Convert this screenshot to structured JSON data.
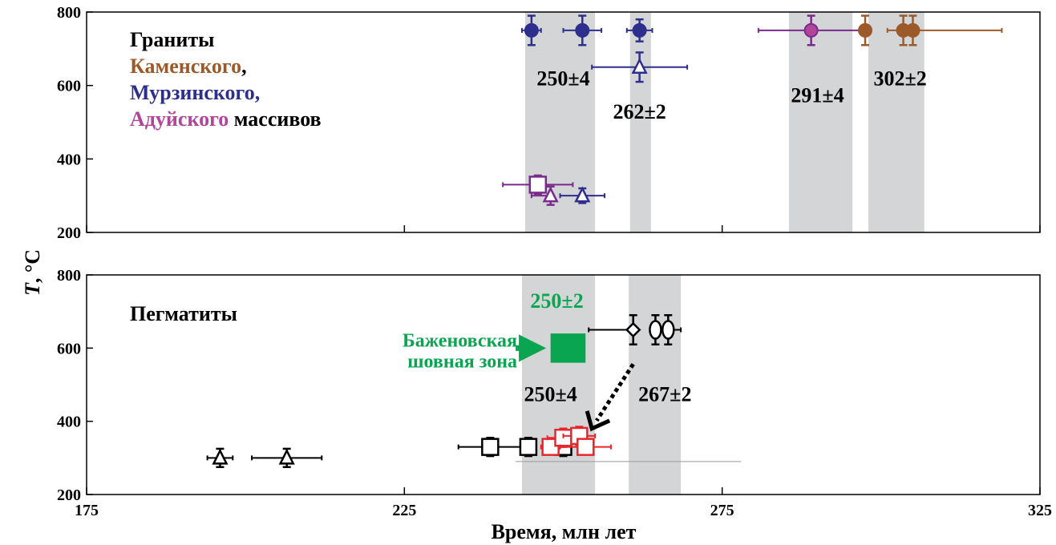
{
  "chart_data": {
    "type": "scatter",
    "xlabel": "Время, млн лет",
    "ylabel_italic": "T",
    "ylabel_unit": ", °C",
    "xlim": [
      175,
      325
    ],
    "x_ticks": [
      175,
      225,
      275,
      325
    ],
    "colors": {
      "kamensky": "#9c5a2a",
      "murzinsky": "#2e2e8c",
      "aduysky": "#7a2a8c",
      "black": "#000000",
      "red": "#e8262b",
      "green": "#0aa550",
      "band": "#d4d5d7"
    },
    "panels": [
      {
        "id": "granites",
        "ylim": [
          200,
          800
        ],
        "y_ticks": [
          200,
          400,
          600,
          800
        ],
        "title_lines": [
          {
            "text": "Граниты",
            "color": "#000000"
          },
          {
            "text": "Каменского",
            "color": "#9c5a2a",
            "suffix": ","
          },
          {
            "text": "Мурзинского,",
            "color": "#2e2e8c"
          },
          {
            "text": "Адуйского",
            "color": "#b0459a",
            "suffix": " массивов"
          }
        ],
        "bands": [
          {
            "from": 244,
            "to": 255,
            "label": "250±4",
            "label_x": 250,
            "label_y": 600
          },
          {
            "from": 260.5,
            "to": 263.8,
            "label": "262±2",
            "label_x": 262,
            "label_y": 510
          },
          {
            "from": 285.5,
            "to": 295.5,
            "label": "291±4",
            "label_x": 290,
            "label_y": 555
          },
          {
            "from": 298,
            "to": 306.8,
            "label": "302±2",
            "label_x": 303,
            "label_y": 600
          }
        ],
        "points": [
          {
            "x": 245,
            "y": 750,
            "xerr": [
              1.5,
              1.5
            ],
            "yerr": 40,
            "marker": "circle",
            "fill": "#2e2e8c",
            "color": "#2e2e8c"
          },
          {
            "x": 253,
            "y": 750,
            "xerr": [
              3,
              3
            ],
            "yerr": 40,
            "marker": "circle",
            "fill": "#2e2e8c",
            "color": "#2e2e8c"
          },
          {
            "x": 262,
            "y": 750,
            "xerr": [
              2,
              2
            ],
            "yerr": 30,
            "marker": "circle",
            "fill": "#2e2e8c",
            "color": "#2e2e8c"
          },
          {
            "x": 262,
            "y": 650,
            "xerr": [
              7.5,
              7.5
            ],
            "yerr": 40,
            "marker": "triangle",
            "fill": "#ffffff",
            "color": "#2e2e8c"
          },
          {
            "x": 289,
            "y": 750,
            "xerr": [
              8.3,
              8.3
            ],
            "yerr": 40,
            "marker": "circle",
            "fill": "#b0459a",
            "color": "#7a2a8c"
          },
          {
            "x": 297.5,
            "y": 750,
            "xerr": [
              0,
              0
            ],
            "yerr": 40,
            "marker": "circle",
            "fill": "#9c5a2a",
            "color": "#9c5a2a"
          },
          {
            "x": 303.5,
            "y": 750,
            "xerr": [
              0,
              0
            ],
            "yerr": 40,
            "marker": "circle",
            "fill": "#9c5a2a",
            "color": "#9c5a2a"
          },
          {
            "x": 305,
            "y": 750,
            "xerr": [
              4,
              14
            ],
            "yerr": 40,
            "marker": "circle",
            "fill": "#9c5a2a",
            "color": "#9c5a2a"
          },
          {
            "x": 246,
            "y": 330,
            "xerr": [
              5.5,
              5.5
            ],
            "yerr": 25,
            "marker": "square",
            "fill": "#ffffff",
            "color": "#7a2a8c"
          },
          {
            "x": 248,
            "y": 300,
            "xerr": [
              3,
              0
            ],
            "yerr": 25,
            "marker": "triangle",
            "fill": "#ffffff",
            "color": "#7a2a8c"
          },
          {
            "x": 253,
            "y": 300,
            "xerr": [
              3.5,
              3.5
            ],
            "yerr": 20,
            "marker": "triangle",
            "fill": "#ffffff",
            "color": "#2e2e8c"
          }
        ]
      },
      {
        "id": "pegmatites",
        "ylim": [
          200,
          800
        ],
        "y_ticks": [
          200,
          400,
          600,
          800
        ],
        "title_lines": [
          {
            "text": "Пегматиты",
            "color": "#000000"
          }
        ],
        "bands": [
          {
            "from": 243.5,
            "to": 255,
            "label": "250±4",
            "label_x": 248,
            "label_y": 455
          },
          {
            "from": 260.3,
            "to": 268.5,
            "label": "267±2",
            "label_x": 266,
            "label_y": 455
          }
        ],
        "highlight": {
          "label": "250±2",
          "label_x": 249,
          "label_y": 710,
          "square": {
            "x0": 248,
            "x1": 253.5,
            "y0": 560,
            "y1": 640
          },
          "arrow_label_lines": [
            "Баженовская",
            "шовная зона"
          ],
          "arrow_from": [
            242.5,
            600
          ],
          "arrow_to": [
            247.3,
            600
          ]
        },
        "dotted_arrow": {
          "from": [
            261,
            600
          ],
          "to": [
            254.5,
            380
          ]
        },
        "points": [
          {
            "x": 196,
            "y": 300,
            "xerr": [
              2,
              2
            ],
            "yerr": 25,
            "marker": "triangle",
            "fill": "#ffffff",
            "color": "#000000"
          },
          {
            "x": 206.5,
            "y": 300,
            "xerr": [
              5.5,
              5.5
            ],
            "yerr": 25,
            "marker": "triangle",
            "fill": "#ffffff",
            "color": "#000000"
          },
          {
            "x": 238.5,
            "y": 330,
            "xerr": [
              5,
              5
            ],
            "yerr": 25,
            "marker": "square",
            "fill": "#ffffff",
            "color": "#000000"
          },
          {
            "x": 244.5,
            "y": 330,
            "xerr": [
              0,
              0
            ],
            "yerr": 25,
            "marker": "square",
            "fill": "#ffffff",
            "color": "#000000"
          },
          {
            "x": 250,
            "y": 330,
            "xerr": [
              0,
              0
            ],
            "yerr": 25,
            "marker": "square",
            "fill": "#ffffff",
            "color": "#000000"
          },
          {
            "x": 248,
            "y": 330,
            "xerr": [
              1.5,
              1.5
            ],
            "yerr": 20,
            "marker": "square",
            "fill": "#ffffff",
            "color": "#e8262b"
          },
          {
            "x": 250,
            "y": 355,
            "xerr": [
              2.5,
              2.5
            ],
            "yerr": 25,
            "marker": "square",
            "fill": "#ffffff",
            "color": "#e8262b"
          },
          {
            "x": 252.5,
            "y": 360,
            "xerr": [
              2.5,
              2.5
            ],
            "yerr": 25,
            "marker": "square",
            "fill": "#ffffff",
            "color": "#e8262b"
          },
          {
            "x": 253.5,
            "y": 330,
            "xerr": [
              4,
              4
            ],
            "yerr": 20,
            "marker": "square",
            "fill": "#ffffff",
            "color": "#e8262b"
          },
          {
            "x": 261,
            "y": 650,
            "xerr": [
              7,
              0
            ],
            "yerr": 40,
            "marker": "diamond",
            "fill": "#ffffff",
            "color": "#000000"
          },
          {
            "x": 264.5,
            "y": 650,
            "xerr": [
              0,
              0
            ],
            "yerr": 40,
            "marker": "ellipse",
            "fill": "#ffffff",
            "color": "#000000"
          },
          {
            "x": 266.5,
            "y": 650,
            "xerr": [
              0,
              2
            ],
            "yerr": 40,
            "marker": "ellipse",
            "fill": "#ffffff",
            "color": "#000000"
          }
        ],
        "gray_line": {
          "x0": 242.5,
          "x1": 278,
          "y": 290
        }
      }
    ]
  }
}
